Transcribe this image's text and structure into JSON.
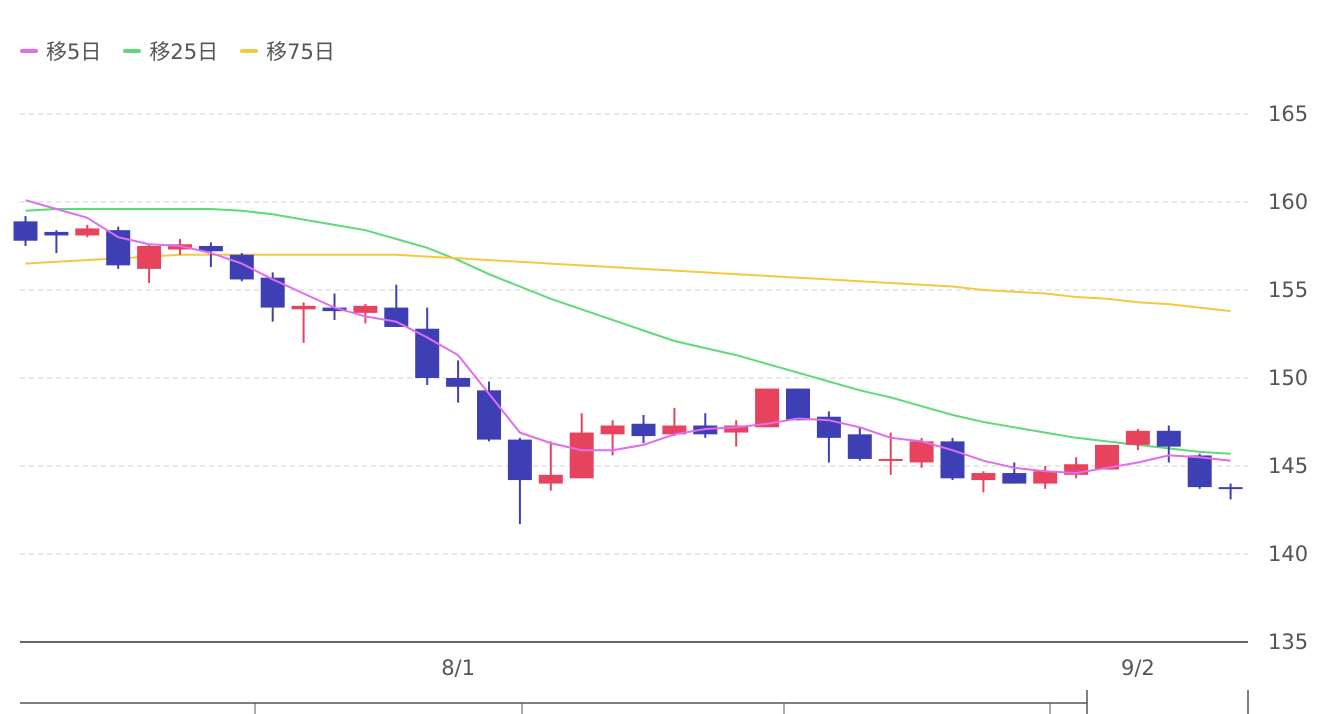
{
  "colors": {
    "up": "#e8435c",
    "down": "#3f3fb5",
    "ma5": "#e06cf0",
    "ma25": "#5fd97a",
    "ma75": "#f5c842",
    "grid": "#d0d0d0",
    "axis": "#333333",
    "text": "#555555"
  },
  "legend": {
    "ma5": "移5日",
    "ma25": "移25日",
    "ma75": "移75日"
  },
  "chart_data": {
    "type": "candlestick",
    "title": "",
    "ylim": [
      135,
      165
    ],
    "y_ticks": [
      {
        "value": 165,
        "label": "165"
      },
      {
        "value": 160,
        "label": "160"
      },
      {
        "value": 155,
        "label": "155"
      },
      {
        "value": 150,
        "label": "150"
      },
      {
        "value": 145,
        "label": "145"
      },
      {
        "value": 140,
        "label": "140"
      },
      {
        "value": 135,
        "label": "135"
      }
    ],
    "x_labels": [
      {
        "index": 14,
        "label": "8/1"
      },
      {
        "index": 36,
        "label": "9/2"
      }
    ],
    "grid": true,
    "legend_position": "top-left",
    "candles": [
      {
        "open": 158.9,
        "high": 159.2,
        "low": 157.5,
        "close": 157.8
      },
      {
        "open": 158.3,
        "high": 158.4,
        "low": 157.1,
        "close": 158.1
      },
      {
        "open": 158.1,
        "high": 158.7,
        "low": 158.0,
        "close": 158.5
      },
      {
        "open": 158.4,
        "high": 158.6,
        "low": 156.2,
        "close": 156.4
      },
      {
        "open": 156.2,
        "high": 157.6,
        "low": 155.4,
        "close": 157.5
      },
      {
        "open": 157.3,
        "high": 157.9,
        "low": 157.0,
        "close": 157.6
      },
      {
        "open": 157.5,
        "high": 157.7,
        "low": 156.3,
        "close": 157.2
      },
      {
        "open": 157.0,
        "high": 157.1,
        "low": 155.5,
        "close": 155.6
      },
      {
        "open": 155.7,
        "high": 156.0,
        "low": 153.2,
        "close": 154.0
      },
      {
        "open": 153.9,
        "high": 154.3,
        "low": 152.0,
        "close": 154.1
      },
      {
        "open": 154.0,
        "high": 154.8,
        "low": 153.3,
        "close": 153.8
      },
      {
        "open": 153.7,
        "high": 154.2,
        "low": 153.1,
        "close": 154.1
      },
      {
        "open": 154.0,
        "high": 155.3,
        "low": 152.9,
        "close": 152.9
      },
      {
        "open": 152.8,
        "high": 154.0,
        "low": 149.6,
        "close": 150.0
      },
      {
        "open": 150.0,
        "high": 151.0,
        "low": 148.6,
        "close": 149.5
      },
      {
        "open": 149.3,
        "high": 149.8,
        "low": 146.4,
        "close": 146.5
      },
      {
        "open": 146.5,
        "high": 146.6,
        "low": 141.7,
        "close": 144.2
      },
      {
        "open": 144.0,
        "high": 146.4,
        "low": 143.6,
        "close": 144.5
      },
      {
        "open": 144.3,
        "high": 148.0,
        "low": 144.3,
        "close": 146.9
      },
      {
        "open": 146.8,
        "high": 147.6,
        "low": 145.6,
        "close": 147.3
      },
      {
        "open": 147.4,
        "high": 147.9,
        "low": 146.3,
        "close": 146.7
      },
      {
        "open": 146.8,
        "high": 148.3,
        "low": 146.7,
        "close": 147.3
      },
      {
        "open": 147.3,
        "high": 148.0,
        "low": 146.6,
        "close": 146.8
      },
      {
        "open": 146.9,
        "high": 147.6,
        "low": 146.1,
        "close": 147.3
      },
      {
        "open": 147.2,
        "high": 149.4,
        "low": 147.2,
        "close": 149.4
      },
      {
        "open": 149.4,
        "high": 149.4,
        "low": 147.6,
        "close": 147.6
      },
      {
        "open": 147.8,
        "high": 148.1,
        "low": 145.2,
        "close": 146.6
      },
      {
        "open": 146.8,
        "high": 147.2,
        "low": 145.3,
        "close": 145.4
      },
      {
        "open": 145.3,
        "high": 146.9,
        "low": 144.5,
        "close": 145.4
      },
      {
        "open": 145.2,
        "high": 146.6,
        "low": 144.9,
        "close": 146.4
      },
      {
        "open": 146.4,
        "high": 146.6,
        "low": 144.2,
        "close": 144.3
      },
      {
        "open": 144.2,
        "high": 144.7,
        "low": 143.5,
        "close": 144.6
      },
      {
        "open": 144.6,
        "high": 145.2,
        "low": 144.0,
        "close": 144.0
      },
      {
        "open": 144.0,
        "high": 145.0,
        "low": 143.7,
        "close": 144.7
      },
      {
        "open": 144.5,
        "high": 145.5,
        "low": 144.3,
        "close": 145.1
      },
      {
        "open": 144.8,
        "high": 146.2,
        "low": 144.8,
        "close": 146.2
      },
      {
        "open": 146.2,
        "high": 147.1,
        "low": 145.9,
        "close": 147.0
      },
      {
        "open": 147.0,
        "high": 147.3,
        "low": 145.2,
        "close": 146.1
      },
      {
        "open": 145.6,
        "high": 145.7,
        "low": 143.7,
        "close": 143.8
      },
      {
        "open": 143.8,
        "high": 144.0,
        "low": 143.1,
        "close": 143.7
      }
    ],
    "series": [
      {
        "name": "移5日",
        "key": "ma5",
        "values": [
          160.1,
          159.6,
          159.1,
          158.0,
          157.6,
          157.5,
          157.1,
          156.5,
          155.6,
          154.8,
          154.0,
          153.5,
          153.2,
          152.3,
          151.3,
          149.1,
          146.9,
          146.3,
          145.9,
          145.9,
          146.2,
          146.8,
          147.1,
          147.2,
          147.4,
          147.7,
          147.6,
          147.2,
          146.6,
          146.4,
          145.9,
          145.3,
          144.9,
          144.7,
          144.6,
          144.9,
          145.2,
          145.6,
          145.5,
          145.3
        ]
      },
      {
        "name": "移25日",
        "key": "ma25",
        "values": [
          159.5,
          159.6,
          159.6,
          159.6,
          159.6,
          159.6,
          159.6,
          159.5,
          159.3,
          159.0,
          158.7,
          158.4,
          157.9,
          157.4,
          156.7,
          155.9,
          155.2,
          154.5,
          153.9,
          153.3,
          152.7,
          152.1,
          151.7,
          151.3,
          150.8,
          150.3,
          149.8,
          149.3,
          148.9,
          148.4,
          147.9,
          147.5,
          147.2,
          146.9,
          146.6,
          146.4,
          146.2,
          146.0,
          145.8,
          145.7
        ]
      },
      {
        "name": "移75日",
        "key": "ma75",
        "values": [
          156.5,
          156.6,
          156.7,
          156.8,
          156.9,
          157.0,
          157.0,
          157.0,
          157.0,
          157.0,
          157.0,
          157.0,
          157.0,
          156.9,
          156.8,
          156.7,
          156.6,
          156.5,
          156.4,
          156.3,
          156.2,
          156.1,
          156.0,
          155.9,
          155.8,
          155.7,
          155.6,
          155.5,
          155.4,
          155.3,
          155.2,
          155.0,
          154.9,
          154.8,
          154.6,
          154.5,
          154.3,
          154.2,
          154.0,
          153.8
        ]
      }
    ]
  }
}
